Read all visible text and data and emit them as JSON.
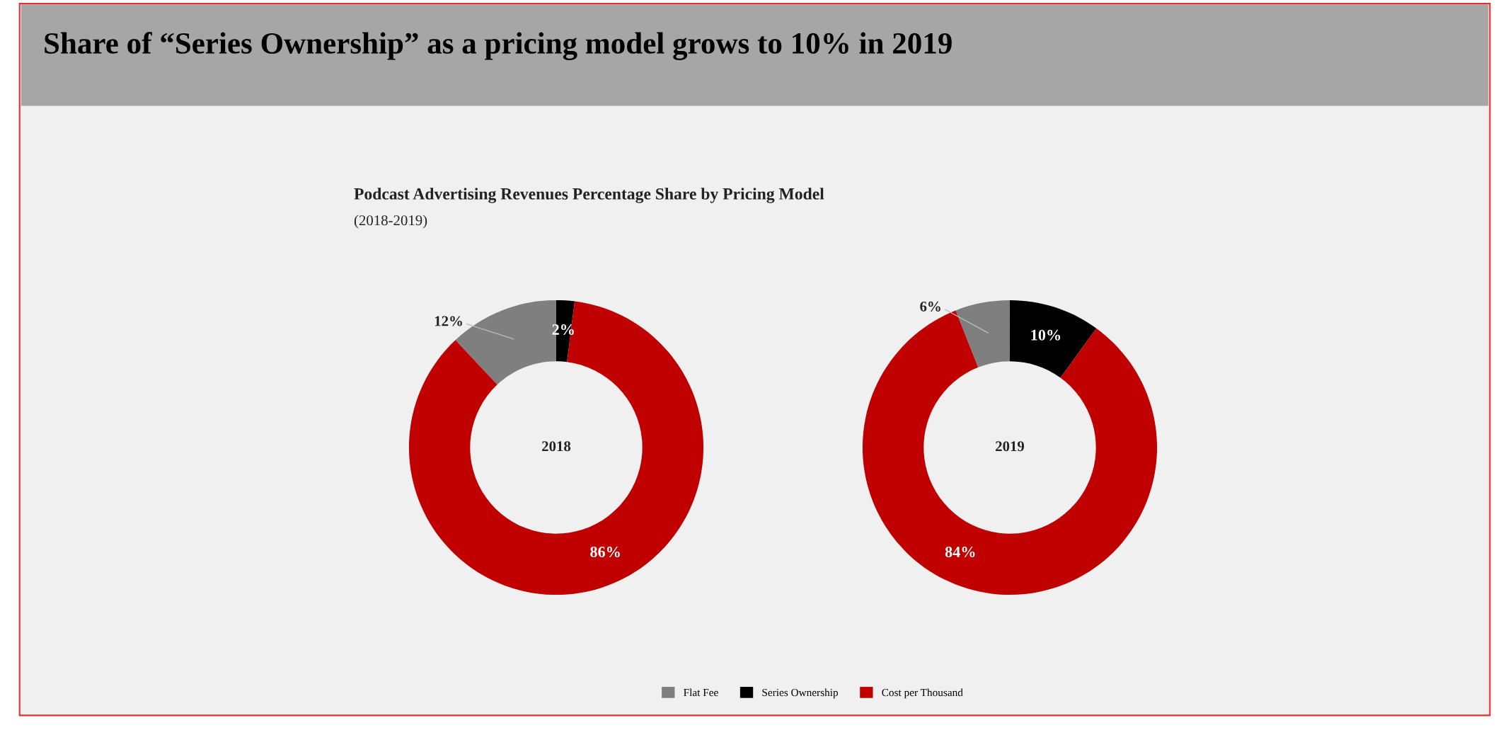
{
  "chart_data": [
    {
      "type": "donut",
      "title": "Share of “Series Ownership” as a pricing model grows to 10% in 2019",
      "subtitle": "Podcast Advertising Revenues Percentage Share by Pricing Model\n(2018-2019)",
      "categories": [
        "Flat Fee",
        "Series Ownership",
        "Cost per Thousand"
      ],
      "values": [
        12,
        2,
        86
      ],
      "colors": [
        "#7f7f7f",
        "#000000",
        "#c00000"
      ],
      "value_labels": [
        "12%",
        "2%",
        "86%"
      ],
      "annotations": [
        "2018"
      ],
      "legend": "bottom"
    },
    {
      "type": "donut",
      "categories": [
        null,
        null,
        null
      ],
      "values": [
        6,
        10,
        84
      ],
      "colors": [
        "#7f7f7f",
        "#000000",
        "#c00000"
      ],
      "value_labels": [
        "6%",
        "10%",
        "84%"
      ],
      "annotations": [
        "2019"
      ]
    }
  ]
}
